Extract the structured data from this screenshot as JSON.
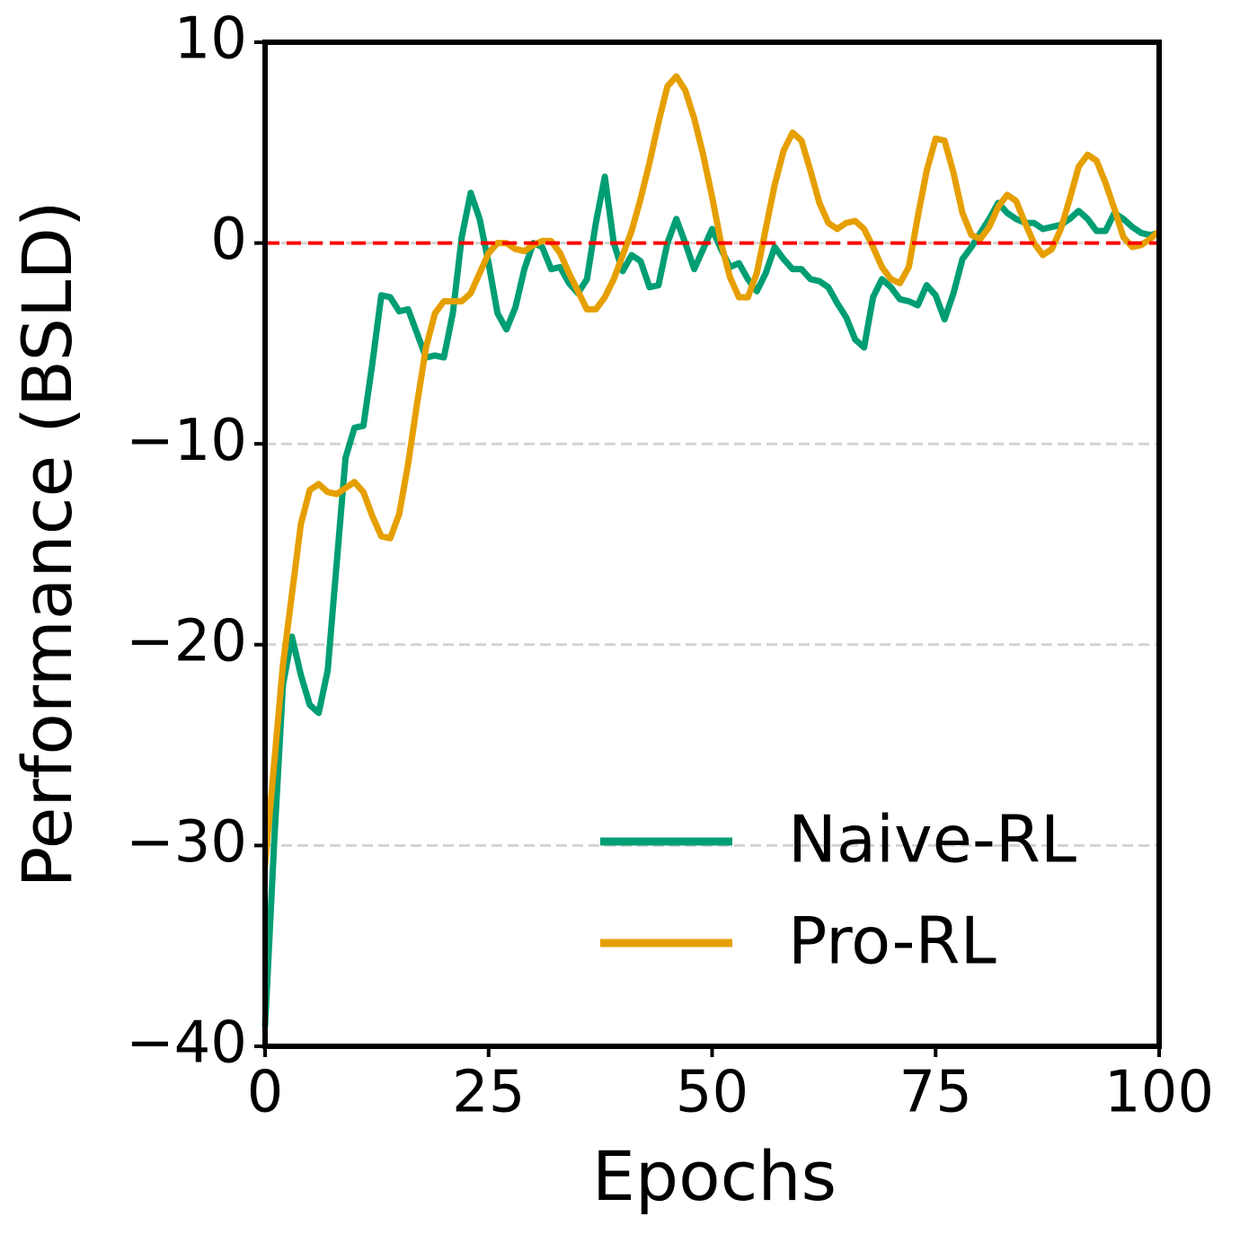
{
  "chart_data": {
    "type": "line",
    "xlabel": "Epochs",
    "ylabel": "Performance (BSLD)",
    "x": [
      0,
      1,
      2,
      3,
      4,
      5,
      6,
      7,
      8,
      9,
      10,
      11,
      12,
      13,
      14,
      15,
      16,
      17,
      18,
      19,
      20,
      21,
      22,
      23,
      24,
      25,
      26,
      27,
      28,
      29,
      30,
      31,
      32,
      33,
      34,
      35,
      36,
      37,
      38,
      39,
      40,
      41,
      42,
      43,
      44,
      45,
      46,
      47,
      48,
      49,
      50,
      51,
      52,
      53,
      54,
      55,
      56,
      57,
      58,
      59,
      60,
      61,
      62,
      63,
      64,
      65,
      66,
      67,
      68,
      69,
      70,
      71,
      72,
      73,
      74,
      75,
      76,
      77,
      78,
      79,
      80,
      81,
      82,
      83,
      84,
      85,
      86,
      87,
      88,
      89,
      90,
      91,
      92,
      93,
      94,
      95,
      96,
      97,
      98,
      99,
      100
    ],
    "series": [
      {
        "name": "Naive-RL",
        "color": "#009e73",
        "values": [
          -39,
          -30,
          -22,
          -19.6,
          -21.5,
          -23,
          -23.4,
          -21.3,
          -16,
          -10.7,
          -9.2,
          -9.1,
          -6,
          -2.6,
          -2.7,
          -3.4,
          -3.3,
          -4.5,
          -5.7,
          -5.6,
          -5.7,
          -3.5,
          0.3,
          2.5,
          1.2,
          -1,
          -3.5,
          -4.3,
          -3.2,
          -1.3,
          0,
          -0.2,
          -1.3,
          -1.2,
          -2,
          -2.5,
          -1.8,
          1,
          3.3,
          0,
          -1.4,
          -0.6,
          -0.9,
          -2.2,
          -2.1,
          0,
          1.2,
          0,
          -1.3,
          -0.3,
          0.7,
          -0.3,
          -1.2,
          -1,
          -1.8,
          -2.4,
          -1.5,
          -0.2,
          -0.8,
          -1.3,
          -1.3,
          -1.8,
          -1.9,
          -2.2,
          -3,
          -3.7,
          -4.8,
          -5.2,
          -2.7,
          -1.8,
          -2.2,
          -2.8,
          -2.9,
          -3.1,
          -2.1,
          -2.6,
          -3.8,
          -2.5,
          -0.8,
          -0.2,
          0.5,
          1.2,
          2,
          1.5,
          1.2,
          1,
          1,
          0.7,
          0.8,
          0.9,
          1.2,
          1.6,
          1.2,
          0.6,
          0.6,
          1.5,
          1.2,
          0.8,
          0.5,
          0.4,
          0.5
        ]
      },
      {
        "name": "Pro-RL",
        "color": "#e69f00",
        "values": [
          -31,
          -26,
          -21,
          -17.5,
          -14,
          -12.3,
          -12,
          -12.4,
          -12.5,
          -12.2,
          -11.9,
          -12.4,
          -13.6,
          -14.6,
          -14.7,
          -13.5,
          -11,
          -8,
          -5.2,
          -3.5,
          -2.9,
          -2.9,
          -2.9,
          -2.5,
          -1.5,
          -0.5,
          0,
          0,
          -0.3,
          -0.4,
          -0.1,
          0.1,
          0.1,
          -0.5,
          -1.5,
          -2.4,
          -3.3,
          -3.3,
          -2.7,
          -1.8,
          -0.6,
          0.6,
          2.2,
          4,
          6,
          7.8,
          8.3,
          7.6,
          6.2,
          4.4,
          2.3,
          0,
          -1.7,
          -2.7,
          -2.7,
          -1.5,
          0.7,
          2.9,
          4.6,
          5.5,
          5.1,
          3.6,
          2,
          1,
          0.7,
          1,
          1.1,
          0.7,
          -0.2,
          -1.2,
          -1.8,
          -2,
          -1.2,
          1.3,
          3.6,
          5.2,
          5.1,
          3.5,
          1.5,
          0.4,
          0.2,
          0.8,
          1.8,
          2.4,
          2.1,
          1,
          0,
          -0.6,
          -0.3,
          0.7,
          2.2,
          3.8,
          4.4,
          4.1,
          3,
          1.7,
          0.3,
          -0.2,
          -0.1,
          0.2,
          0.6
        ]
      }
    ],
    "xlim": [
      0,
      100
    ],
    "xticks": [
      0,
      25,
      50,
      75,
      100
    ],
    "ylim": [
      -40,
      10
    ],
    "yticks": [
      {
        "value": -40,
        "label": "−40"
      },
      {
        "value": -30,
        "label": "−30"
      },
      {
        "value": -20,
        "label": "−20"
      },
      {
        "value": -10,
        "label": "−10"
      },
      0,
      10
    ],
    "grid": true,
    "hline": {
      "value": 0,
      "color": "#ff0000"
    },
    "legend": "lower right"
  }
}
